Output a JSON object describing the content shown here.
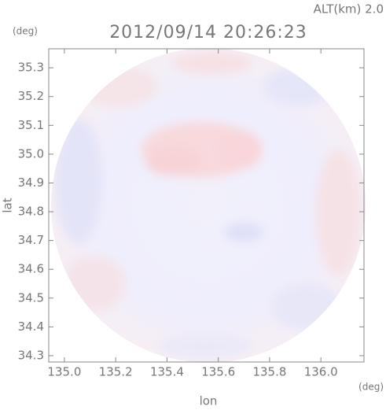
{
  "chart_data": {
    "type": "heatmap",
    "title": "2012/09/14 20:26:23",
    "subtitle": "ALT(km) 2.0",
    "x_label": "lon",
    "x_unit": "(deg)",
    "y_label": "lat",
    "y_unit": "(deg)",
    "xlim": [
      134.939,
      136.168
    ],
    "ylim": [
      34.278,
      35.366
    ],
    "xticks": [
      {
        "value": 135.0,
        "label": "135.0"
      },
      135.2,
      135.4,
      135.6,
      135.8,
      {
        "value": 136.0,
        "label": "136.0"
      }
    ],
    "yticks": [
      34.3,
      34.4,
      34.5,
      34.6,
      34.7,
      34.8,
      34.9,
      {
        "value": 35.0,
        "label": "35.0"
      },
      35.1,
      35.2,
      35.3
    ]
  }
}
